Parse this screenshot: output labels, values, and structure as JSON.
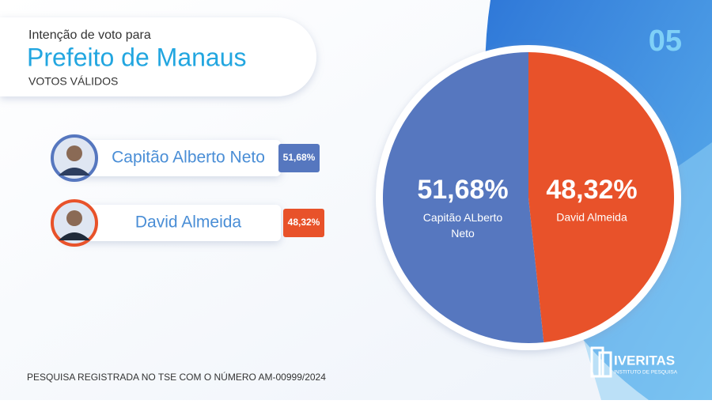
{
  "header": {
    "subtitle": "Intenção de voto para",
    "title": "Prefeito de Manaus",
    "note": "VOTOS VÁLIDOS"
  },
  "slide_number": "05",
  "ranking": {
    "names": [
      "Capitão Alberto Neto",
      "David Almeida"
    ]
  },
  "chart_data": {
    "type": "pie",
    "categories": [
      "Capitão ALberto Neto",
      "David Almeida"
    ],
    "values": [
      51.68,
      48.32
    ],
    "value_labels": [
      "51,68%",
      "48,32%"
    ],
    "colors": [
      "#5677bf",
      "#e8522a"
    ]
  },
  "footer": "PESQUISA REGISTRADA NO TSE COM O NÚMERO AM-00999/2024",
  "logo": {
    "name": "IVERITAS",
    "tagline": "INSTITUTO DE PESQUISA"
  }
}
